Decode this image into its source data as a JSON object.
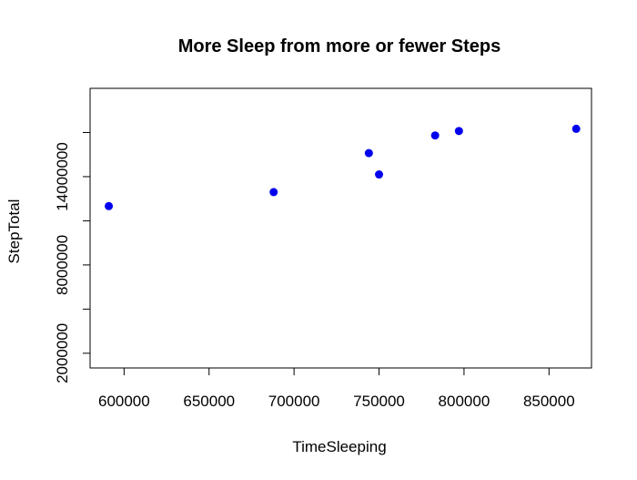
{
  "chart_data": {
    "type": "scatter",
    "title": "More Sleep from more or fewer Steps",
    "xlabel": "TimeSleeping",
    "ylabel": "StepTotal",
    "xlim": [
      580000,
      875000
    ],
    "ylim": [
      1000000,
      20000000
    ],
    "x_ticks": [
      600000,
      650000,
      700000,
      750000,
      800000,
      850000
    ],
    "x_tick_labels": [
      "600000",
      "650000",
      "700000",
      "750000",
      "800000",
      "850000"
    ],
    "y_ticks": [
      2000000,
      5000000,
      8000000,
      11000000,
      14000000,
      17000000
    ],
    "y_tick_labels": [
      "2000000",
      "",
      "8000000",
      "",
      "14000000",
      ""
    ],
    "grid": false,
    "marker_color": "#0000ee",
    "points": [
      {
        "x": 591000,
        "y": 12000000
      },
      {
        "x": 688000,
        "y": 12950000
      },
      {
        "x": 744000,
        "y": 15600000
      },
      {
        "x": 750000,
        "y": 14150000
      },
      {
        "x": 783000,
        "y": 16800000
      },
      {
        "x": 797000,
        "y": 17100000
      },
      {
        "x": 866000,
        "y": 17250000
      }
    ]
  }
}
